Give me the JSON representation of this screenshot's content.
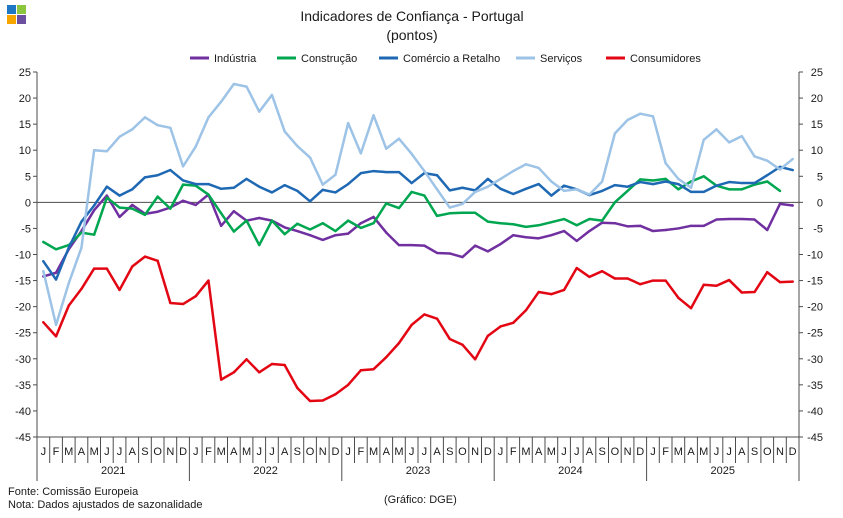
{
  "logo": {
    "colors": [
      "#1f77c4",
      "#8cc63f",
      "#f7a600",
      "#6d4fa0"
    ]
  },
  "footer": {
    "source": "Fonte: Comissão Europeia",
    "note": "Nota: Dados ajustados de sazonalidade",
    "credit": "(Gráfico: DGE)"
  },
  "chart_data": {
    "type": "line",
    "title": "Indicadores de Confiança - Portugal",
    "subtitle": "(pontos)",
    "xlabel": "",
    "ylabel": "",
    "ylim": [
      -45,
      25
    ],
    "yticks": [
      25,
      20,
      15,
      10,
      5,
      0,
      -5,
      -10,
      -15,
      -20,
      -25,
      -30,
      -35,
      -40,
      -45
    ],
    "grid": false,
    "legend_position": "top",
    "years": [
      "2021",
      "2022",
      "2023",
      "2024",
      "2025"
    ],
    "month_labels": [
      "J",
      "F",
      "M",
      "A",
      "M",
      "J",
      "J",
      "A",
      "S",
      "O",
      "N",
      "D"
    ],
    "x": [
      "2021-01",
      "2021-02",
      "2021-03",
      "2021-04",
      "2021-05",
      "2021-06",
      "2021-07",
      "2021-08",
      "2021-09",
      "2021-10",
      "2021-11",
      "2021-12",
      "2022-01",
      "2022-02",
      "2022-03",
      "2022-04",
      "2022-05",
      "2022-06",
      "2022-07",
      "2022-08",
      "2022-09",
      "2022-10",
      "2022-11",
      "2022-12",
      "2023-01",
      "2023-02",
      "2023-03",
      "2023-04",
      "2023-05",
      "2023-06",
      "2023-07",
      "2023-08",
      "2023-09",
      "2023-10",
      "2023-11",
      "2023-12",
      "2024-01",
      "2024-02",
      "2024-03",
      "2024-04",
      "2024-05",
      "2024-06",
      "2024-07",
      "2024-08",
      "2024-09",
      "2024-10",
      "2024-11",
      "2024-12",
      "2025-01",
      "2025-02",
      "2025-03",
      "2025-04",
      "2025-05",
      "2025-06",
      "2025-07",
      "2025-08",
      "2025-09",
      "2025-10",
      "2025-11",
      "2025-12"
    ],
    "series": [
      {
        "name": "Indústria",
        "color": "#7030a0",
        "values": [
          -14.2,
          -13.5,
          -9.0,
          -5.5,
          -1.5,
          1.3,
          -2.8,
          -0.5,
          -2.2,
          -1.8,
          -1.0,
          0.3,
          -0.5,
          1.5,
          -4.5,
          -1.7,
          -3.5,
          -3.0,
          -3.5,
          -4.8,
          -5.5,
          -6.3,
          -7.2,
          -6.3,
          -6.0,
          -4.0,
          -2.8,
          -5.8,
          -8.2,
          -8.2,
          -8.3,
          -9.7,
          -9.8,
          -10.5,
          -8.3,
          -9.4,
          -8.0,
          -6.3,
          -6.7,
          -6.9,
          -6.3,
          -5.5,
          -7.4,
          -5.5,
          -3.9,
          -4.0,
          -4.6,
          -4.5,
          -5.5,
          -5.3,
          -5.0,
          -4.5,
          -4.5,
          -3.3,
          -3.2,
          -3.2,
          -3.3,
          -5.3,
          -0.3,
          -0.6
        ]
      },
      {
        "name": "Construção",
        "color": "#00a650",
        "values": [
          -7.6,
          -9.0,
          -8.2,
          -5.8,
          -6.2,
          0.9,
          -1.0,
          -1.2,
          -2.4,
          1.1,
          -1.2,
          3.4,
          3.2,
          1.5,
          -2.1,
          -5.6,
          -3.5,
          -8.2,
          -3.5,
          -6.1,
          -4.1,
          -5.2,
          -4.0,
          -5.5,
          -3.5,
          -4.9,
          -4.0,
          -0.2,
          -1.1,
          2.0,
          1.3,
          -2.6,
          -2.1,
          -2.0,
          -2.0,
          -3.7,
          -4.0,
          -4.2,
          -4.7,
          -4.4,
          -3.8,
          -3.2,
          -4.4,
          -3.2,
          -3.5,
          0.0,
          2.2,
          4.4,
          4.2,
          4.5,
          2.5,
          4.0,
          5.0,
          3.2,
          2.5,
          2.5,
          3.4,
          4.0,
          2.2,
          null
        ]
      },
      {
        "name": "Comércio a Retalho",
        "color": "#1f69b4",
        "values": [
          -11.3,
          -14.8,
          -8.7,
          -3.7,
          -0.6,
          3.0,
          1.3,
          2.5,
          4.8,
          5.2,
          6.2,
          4.2,
          3.5,
          3.5,
          2.6,
          2.8,
          4.5,
          3.0,
          1.9,
          3.3,
          2.2,
          0.2,
          2.4,
          1.9,
          3.5,
          5.6,
          6.0,
          5.8,
          5.8,
          3.7,
          5.6,
          5.2,
          2.3,
          2.8,
          2.3,
          4.5,
          2.6,
          1.6,
          2.6,
          3.5,
          1.3,
          3.2,
          2.5,
          1.4,
          2.2,
          3.3,
          3.0,
          3.9,
          3.5,
          4.0,
          3.5,
          2.0,
          2.0,
          3.2,
          3.9,
          3.7,
          3.7,
          5.2,
          6.8,
          6.2
        ]
      },
      {
        "name": "Serviços",
        "color": "#9dc3e6",
        "values": [
          -13.2,
          -23.5,
          -15.5,
          -8.7,
          10.0,
          9.8,
          12.6,
          14.0,
          16.3,
          14.8,
          14.3,
          6.9,
          10.7,
          16.3,
          19.3,
          22.7,
          22.2,
          17.4,
          20.6,
          13.6,
          10.8,
          8.6,
          3.4,
          5.3,
          15.2,
          9.4,
          16.7,
          10.3,
          12.2,
          9.3,
          6.0,
          2.5,
          -1.0,
          -0.3,
          2.0,
          3.0,
          4.5,
          6.0,
          7.3,
          6.6,
          4.0,
          2.2,
          2.5,
          1.5,
          4.0,
          13.2,
          15.8,
          17.0,
          16.5,
          7.5,
          4.5,
          2.8,
          12.0,
          14.0,
          11.5,
          12.7,
          8.8,
          8.0,
          6.3,
          8.3
        ]
      },
      {
        "name": "Consumidores",
        "color": "#e30613",
        "values": [
          -23.0,
          -25.7,
          -19.8,
          -16.6,
          -12.7,
          -12.7,
          -16.8,
          -12.3,
          -10.4,
          -11.2,
          -19.3,
          -19.5,
          -18.0,
          -15.0,
          -34.0,
          -32.6,
          -30.1,
          -32.6,
          -31.0,
          -31.2,
          -35.6,
          -38.1,
          -38.0,
          -36.8,
          -35.0,
          -32.2,
          -32.0,
          -29.7,
          -27.0,
          -23.5,
          -21.5,
          -22.3,
          -26.2,
          -27.3,
          -30.1,
          -25.6,
          -23.8,
          -23.1,
          -20.7,
          -17.2,
          -17.6,
          -16.8,
          -12.6,
          -14.3,
          -13.2,
          -14.6,
          -14.6,
          -15.7,
          -15.0,
          -15.0,
          -18.3,
          -20.3,
          -15.8,
          -16.0,
          -14.9,
          -17.3,
          -17.2,
          -13.4,
          -15.3,
          -15.2
        ]
      }
    ]
  }
}
